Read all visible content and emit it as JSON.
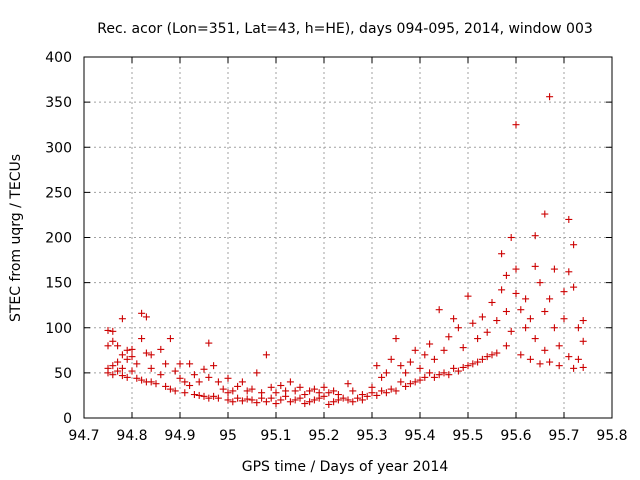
{
  "chart_data": {
    "type": "scatter",
    "title": "Rec. acor (Lon=351, Lat=43, h=HE), days 094-095, 2014, window 003",
    "xlabel": "GPS time / Days of year 2014",
    "ylabel": "STEC from uqrg / TECUs",
    "xlim": [
      94.7,
      95.8
    ],
    "ylim": [
      0,
      400
    ],
    "xticks": [
      94.7,
      94.8,
      94.9,
      95,
      95.1,
      95.2,
      95.3,
      95.4,
      95.5,
      95.6,
      95.7,
      95.8
    ],
    "xtick_labels": [
      "94.7",
      "94.8",
      "94.9",
      "95",
      "95.1",
      "95.2",
      "95.3",
      "95.4",
      "95.5",
      "95.6",
      "95.7",
      "95.8"
    ],
    "yticks": [
      0,
      50,
      100,
      150,
      200,
      250,
      300,
      350,
      400
    ],
    "ytick_labels": [
      "0",
      "50",
      "100",
      "150",
      "200",
      "250",
      "300",
      "350",
      "400"
    ],
    "grid": true,
    "marker": "+",
    "color": "#cc0000",
    "series": [
      {
        "name": "STEC",
        "points": [
          [
            94.75,
            50
          ],
          [
            94.75,
            55
          ],
          [
            94.75,
            80
          ],
          [
            94.75,
            97
          ],
          [
            94.76,
            48
          ],
          [
            94.76,
            58
          ],
          [
            94.76,
            85
          ],
          [
            94.76,
            96
          ],
          [
            94.77,
            52
          ],
          [
            94.77,
            62
          ],
          [
            94.77,
            80
          ],
          [
            94.78,
            110
          ],
          [
            94.78,
            47
          ],
          [
            94.78,
            55
          ],
          [
            94.78,
            70
          ],
          [
            94.79,
            45
          ],
          [
            94.79,
            65
          ],
          [
            94.79,
            75
          ],
          [
            94.8,
            52
          ],
          [
            94.8,
            68
          ],
          [
            94.8,
            76
          ],
          [
            94.81,
            44
          ],
          [
            94.81,
            60
          ],
          [
            94.82,
            116
          ],
          [
            94.82,
            42
          ],
          [
            94.82,
            88
          ],
          [
            94.83,
            112
          ],
          [
            94.83,
            40
          ],
          [
            94.83,
            72
          ],
          [
            94.84,
            55
          ],
          [
            94.84,
            40
          ],
          [
            94.84,
            70
          ],
          [
            94.85,
            38
          ],
          [
            94.86,
            76
          ],
          [
            94.86,
            48
          ],
          [
            94.87,
            35
          ],
          [
            94.87,
            60
          ],
          [
            94.88,
            88
          ],
          [
            94.88,
            32
          ],
          [
            94.89,
            52
          ],
          [
            94.89,
            30
          ],
          [
            94.9,
            44
          ],
          [
            94.9,
            60
          ],
          [
            94.91,
            28
          ],
          [
            94.91,
            40
          ],
          [
            94.92,
            36
          ],
          [
            94.92,
            60
          ],
          [
            94.93,
            26
          ],
          [
            94.93,
            48
          ],
          [
            94.94,
            25
          ],
          [
            94.94,
            40
          ],
          [
            94.95,
            24
          ],
          [
            94.95,
            54
          ],
          [
            94.96,
            83
          ],
          [
            94.96,
            22
          ],
          [
            94.96,
            45
          ],
          [
            94.97,
            24
          ],
          [
            94.97,
            58
          ],
          [
            94.98,
            22
          ],
          [
            94.98,
            40
          ],
          [
            94.99,
            32
          ],
          [
            95,
            20
          ],
          [
            95,
            28
          ],
          [
            95,
            44
          ],
          [
            95.01,
            18
          ],
          [
            95.01,
            30
          ],
          [
            95.02,
            22
          ],
          [
            95.02,
            35
          ],
          [
            95.03,
            19
          ],
          [
            95.03,
            40
          ],
          [
            95.04,
            21
          ],
          [
            95.04,
            30
          ],
          [
            95.05,
            20
          ],
          [
            95.05,
            32
          ],
          [
            95.06,
            17
          ],
          [
            95.06,
            50
          ],
          [
            95.07,
            22
          ],
          [
            95.07,
            28
          ],
          [
            95.08,
            70
          ],
          [
            95.08,
            18
          ],
          [
            95.09,
            22
          ],
          [
            95.09,
            34
          ],
          [
            95.1,
            16
          ],
          [
            95.1,
            28
          ],
          [
            95.11,
            20
          ],
          [
            95.11,
            36
          ],
          [
            95.12,
            24
          ],
          [
            95.12,
            30
          ],
          [
            95.13,
            18
          ],
          [
            95.13,
            40
          ],
          [
            95.14,
            20
          ],
          [
            95.14,
            30
          ],
          [
            95.15,
            22
          ],
          [
            95.15,
            34
          ],
          [
            95.16,
            16
          ],
          [
            95.16,
            26
          ],
          [
            95.17,
            18
          ],
          [
            95.17,
            30
          ],
          [
            95.18,
            20
          ],
          [
            95.18,
            32
          ],
          [
            95.19,
            22
          ],
          [
            95.19,
            28
          ],
          [
            95.2,
            24
          ],
          [
            95.2,
            34
          ],
          [
            95.21,
            15
          ],
          [
            95.21,
            28
          ],
          [
            95.22,
            18
          ],
          [
            95.22,
            30
          ],
          [
            95.23,
            20
          ],
          [
            95.23,
            26
          ],
          [
            95.24,
            22
          ],
          [
            95.25,
            38
          ],
          [
            95.25,
            20
          ],
          [
            95.26,
            18
          ],
          [
            95.26,
            30
          ],
          [
            95.27,
            22
          ],
          [
            95.28,
            26
          ],
          [
            95.28,
            20
          ],
          [
            95.29,
            24
          ],
          [
            95.3,
            28
          ],
          [
            95.3,
            34
          ],
          [
            95.31,
            25
          ],
          [
            95.31,
            58
          ],
          [
            95.32,
            30
          ],
          [
            95.32,
            45
          ],
          [
            95.33,
            28
          ],
          [
            95.33,
            50
          ],
          [
            95.34,
            32
          ],
          [
            95.34,
            65
          ],
          [
            95.35,
            30
          ],
          [
            95.35,
            88
          ],
          [
            95.36,
            40
          ],
          [
            95.36,
            58
          ],
          [
            95.37,
            35
          ],
          [
            95.37,
            50
          ],
          [
            95.38,
            38
          ],
          [
            95.38,
            62
          ],
          [
            95.39,
            40
          ],
          [
            95.39,
            75
          ],
          [
            95.4,
            42
          ],
          [
            95.4,
            55
          ],
          [
            95.41,
            45
          ],
          [
            95.41,
            70
          ],
          [
            95.42,
            50
          ],
          [
            95.42,
            82
          ],
          [
            95.43,
            45
          ],
          [
            95.43,
            65
          ],
          [
            95.44,
            48
          ],
          [
            95.44,
            120
          ],
          [
            95.45,
            50
          ],
          [
            95.45,
            75
          ],
          [
            95.46,
            48
          ],
          [
            95.46,
            90
          ],
          [
            95.47,
            55
          ],
          [
            95.47,
            110
          ],
          [
            95.48,
            52
          ],
          [
            95.48,
            100
          ],
          [
            95.49,
            56
          ],
          [
            95.49,
            78
          ],
          [
            95.5,
            58
          ],
          [
            95.5,
            135
          ],
          [
            95.51,
            60
          ],
          [
            95.51,
            105
          ],
          [
            95.52,
            62
          ],
          [
            95.52,
            88
          ],
          [
            95.53,
            65
          ],
          [
            95.53,
            112
          ],
          [
            95.54,
            68
          ],
          [
            95.54,
            95
          ],
          [
            95.55,
            70
          ],
          [
            95.55,
            128
          ],
          [
            95.56,
            72
          ],
          [
            95.56,
            108
          ],
          [
            95.57,
            142
          ],
          [
            95.57,
            182
          ],
          [
            95.58,
            80
          ],
          [
            95.58,
            118
          ],
          [
            95.58,
            158
          ],
          [
            95.59,
            200
          ],
          [
            95.59,
            96
          ],
          [
            95.6,
            325
          ],
          [
            95.6,
            165
          ],
          [
            95.6,
            138
          ],
          [
            95.61,
            70
          ],
          [
            95.61,
            120
          ],
          [
            95.62,
            100
          ],
          [
            95.62,
            132
          ],
          [
            95.63,
            65
          ],
          [
            95.63,
            110
          ],
          [
            95.64,
            168
          ],
          [
            95.64,
            202
          ],
          [
            95.64,
            88
          ],
          [
            95.65,
            150
          ],
          [
            95.65,
            60
          ],
          [
            95.66,
            226
          ],
          [
            95.66,
            118
          ],
          [
            95.66,
            75
          ],
          [
            95.67,
            356
          ],
          [
            95.67,
            132
          ],
          [
            95.67,
            62
          ],
          [
            95.68,
            100
          ],
          [
            95.68,
            165
          ],
          [
            95.69,
            58
          ],
          [
            95.69,
            80
          ],
          [
            95.7,
            140
          ],
          [
            95.7,
            110
          ],
          [
            95.71,
            220
          ],
          [
            95.71,
            162
          ],
          [
            95.71,
            68
          ],
          [
            95.72,
            192
          ],
          [
            95.72,
            145
          ],
          [
            95.72,
            55
          ],
          [
            95.73,
            100
          ],
          [
            95.73,
            65
          ],
          [
            95.74,
            108
          ],
          [
            95.74,
            56
          ],
          [
            95.74,
            85
          ]
        ]
      }
    ]
  }
}
